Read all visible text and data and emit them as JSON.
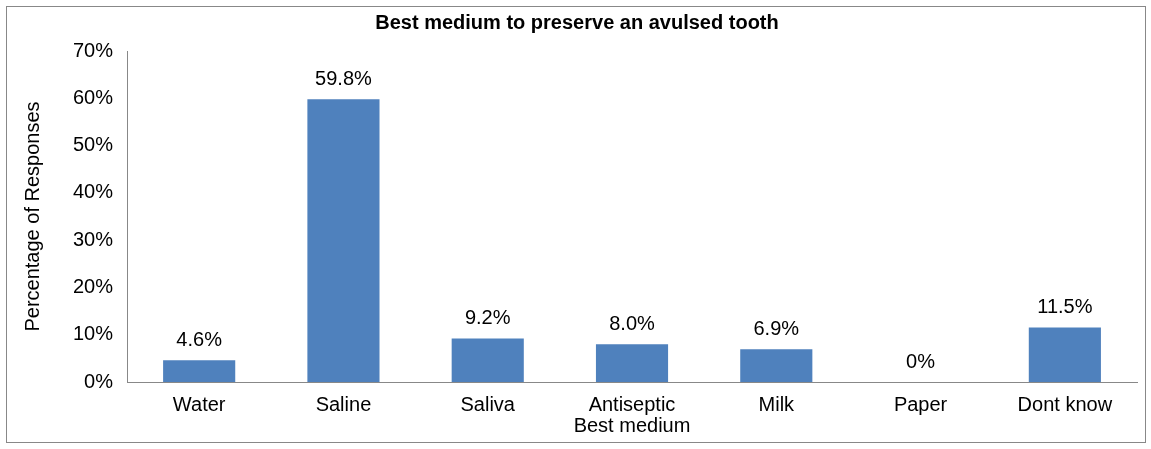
{
  "chart_data": {
    "type": "bar",
    "title": "Best medium to preserve an avulsed tooth",
    "xlabel": "Best medium",
    "ylabel": "Percentage of Responses",
    "categories": [
      "Water",
      "Saline",
      "Saliva",
      "Antiseptic",
      "Milk",
      "Paper",
      "Dont know"
    ],
    "values": [
      4.6,
      59.8,
      9.2,
      8.0,
      6.9,
      0,
      11.5
    ],
    "value_labels": [
      "4.6%",
      "59.8%",
      "9.2%",
      "8.0%",
      "6.9%",
      "0%",
      "11.5%"
    ],
    "color": "#4f81bd",
    "ylim": [
      0,
      70
    ],
    "yticks": [
      {
        "value": 0,
        "label": "0%"
      },
      {
        "value": 10,
        "label": "10%"
      },
      {
        "value": 20,
        "label": "20%"
      },
      {
        "value": 30,
        "label": "30%"
      },
      {
        "value": 40,
        "label": "40%"
      },
      {
        "value": 50,
        "label": "50%"
      },
      {
        "value": 60,
        "label": "60%"
      },
      {
        "value": 70,
        "label": "70%"
      }
    ],
    "grid": false,
    "legend": false
  }
}
